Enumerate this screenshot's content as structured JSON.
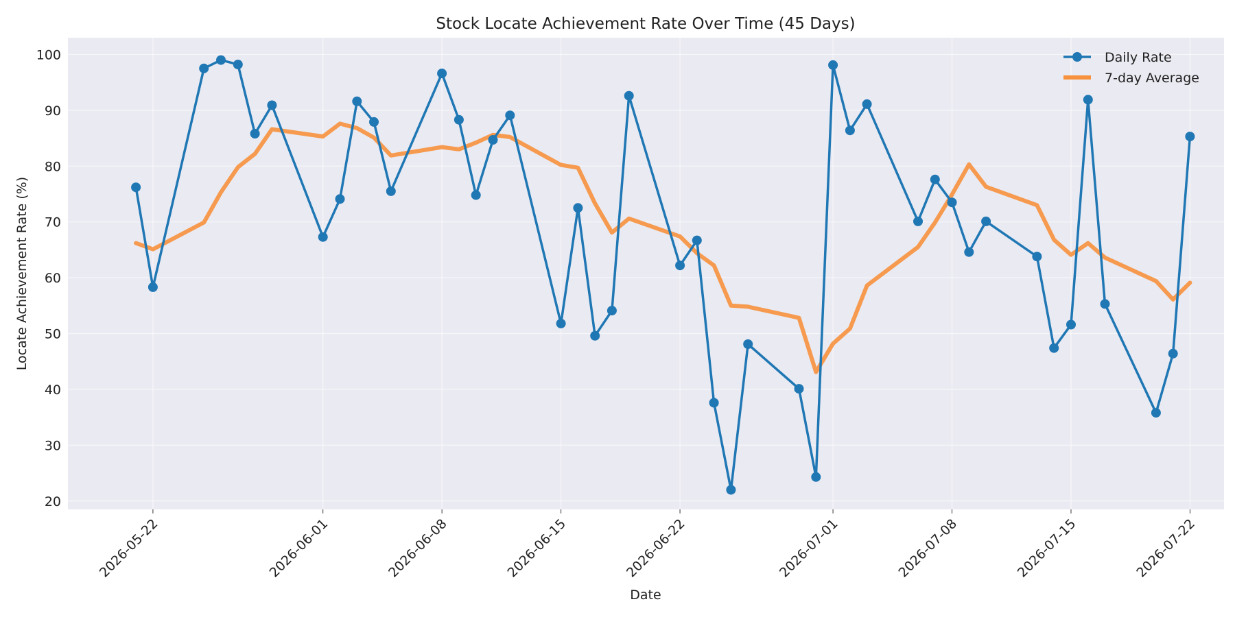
{
  "chart_data": {
    "type": "line",
    "title": "Stock Locate Achievement Rate Over Time (45 Days)",
    "xlabel": "Date",
    "ylabel": "Locate Achievement Rate (%)",
    "ylim": [
      18.5,
      103
    ],
    "xlim": [
      "2026-05-17",
      "2026-07-24"
    ],
    "grid": true,
    "legend_position": "top-right",
    "x_ticks": [
      "2026-05-22",
      "2026-06-01",
      "2026-06-08",
      "2026-06-15",
      "2026-06-22",
      "2026-07-01",
      "2026-07-08",
      "2026-07-15",
      "2026-07-22"
    ],
    "y_ticks": [
      20,
      30,
      40,
      50,
      60,
      70,
      80,
      90,
      100
    ],
    "series": [
      {
        "name": "Daily Rate",
        "color": "#1f77b4",
        "marker": "circle",
        "points": [
          [
            "2026-05-21",
            76.2
          ],
          [
            "2026-05-22",
            58.3
          ],
          [
            "2026-05-25",
            97.5
          ],
          [
            "2026-05-26",
            99.0
          ],
          [
            "2026-05-27",
            98.2
          ],
          [
            "2026-05-28",
            85.8
          ],
          [
            "2026-05-29",
            90.9
          ],
          [
            "2026-06-01",
            67.3
          ],
          [
            "2026-06-02",
            74.1
          ],
          [
            "2026-06-03",
            91.6
          ],
          [
            "2026-06-04",
            87.9
          ],
          [
            "2026-06-05",
            75.5
          ],
          [
            "2026-06-08",
            96.6
          ],
          [
            "2026-06-09",
            88.3
          ],
          [
            "2026-06-10",
            74.8
          ],
          [
            "2026-06-11",
            84.7
          ],
          [
            "2026-06-12",
            89.1
          ],
          [
            "2026-06-15",
            51.8
          ],
          [
            "2026-06-16",
            72.5
          ],
          [
            "2026-06-17",
            49.6
          ],
          [
            "2026-06-18",
            54.1
          ],
          [
            "2026-06-19",
            92.6
          ],
          [
            "2026-06-22",
            62.2
          ],
          [
            "2026-06-23",
            66.7
          ],
          [
            "2026-06-24",
            37.6
          ],
          [
            "2026-06-25",
            22.0
          ],
          [
            "2026-06-26",
            48.1
          ],
          [
            "2026-06-29",
            40.1
          ],
          [
            "2026-06-30",
            24.3
          ],
          [
            "2026-07-01",
            98.1
          ],
          [
            "2026-07-02",
            86.4
          ],
          [
            "2026-07-03",
            91.1
          ],
          [
            "2026-07-06",
            70.1
          ],
          [
            "2026-07-07",
            77.6
          ],
          [
            "2026-07-08",
            73.5
          ],
          [
            "2026-07-09",
            64.6
          ],
          [
            "2026-07-10",
            70.1
          ],
          [
            "2026-07-13",
            63.8
          ],
          [
            "2026-07-14",
            47.4
          ],
          [
            "2026-07-15",
            51.6
          ],
          [
            "2026-07-16",
            91.9
          ],
          [
            "2026-07-17",
            55.3
          ],
          [
            "2026-07-20",
            35.8
          ],
          [
            "2026-07-21",
            46.4
          ],
          [
            "2026-07-22",
            85.3
          ]
        ]
      },
      {
        "name": "7-day Average",
        "color": "#f7913d",
        "marker": "none",
        "points": [
          [
            "2026-05-21",
            66.2
          ],
          [
            "2026-05-22",
            65.1
          ],
          [
            "2026-05-25",
            69.9
          ],
          [
            "2026-05-26",
            75.3
          ],
          [
            "2026-05-27",
            79.8
          ],
          [
            "2026-05-28",
            82.2
          ],
          [
            "2026-05-29",
            86.6
          ],
          [
            "2026-06-01",
            85.3
          ],
          [
            "2026-06-02",
            87.6
          ],
          [
            "2026-06-03",
            86.8
          ],
          [
            "2026-06-04",
            85.1
          ],
          [
            "2026-06-05",
            81.9
          ],
          [
            "2026-06-08",
            83.4
          ],
          [
            "2026-06-09",
            83.0
          ],
          [
            "2026-06-10",
            84.2
          ],
          [
            "2026-06-11",
            85.6
          ],
          [
            "2026-06-12",
            85.2
          ],
          [
            "2026-06-15",
            80.2
          ],
          [
            "2026-06-16",
            79.7
          ],
          [
            "2026-06-17",
            73.3
          ],
          [
            "2026-06-18",
            68.1
          ],
          [
            "2026-06-19",
            70.6
          ],
          [
            "2026-06-22",
            67.4
          ],
          [
            "2026-06-23",
            64.4
          ],
          [
            "2026-06-24",
            62.2
          ],
          [
            "2026-06-25",
            55.0
          ],
          [
            "2026-06-26",
            54.8
          ],
          [
            "2026-06-29",
            52.8
          ],
          [
            "2026-06-30",
            43.1
          ],
          [
            "2026-07-01",
            48.2
          ],
          [
            "2026-07-02",
            50.9
          ],
          [
            "2026-07-03",
            58.6
          ],
          [
            "2026-07-06",
            65.5
          ],
          [
            "2026-07-07",
            69.9
          ],
          [
            "2026-07-08",
            74.9
          ],
          [
            "2026-07-09",
            80.3
          ],
          [
            "2026-07-10",
            76.3
          ],
          [
            "2026-07-13",
            73.0
          ],
          [
            "2026-07-14",
            66.8
          ],
          [
            "2026-07-15",
            64.1
          ],
          [
            "2026-07-16",
            66.2
          ],
          [
            "2026-07-17",
            63.6
          ],
          [
            "2026-07-20",
            59.4
          ],
          [
            "2026-07-21",
            56.1
          ],
          [
            "2026-07-22",
            59.1
          ]
        ]
      }
    ]
  }
}
